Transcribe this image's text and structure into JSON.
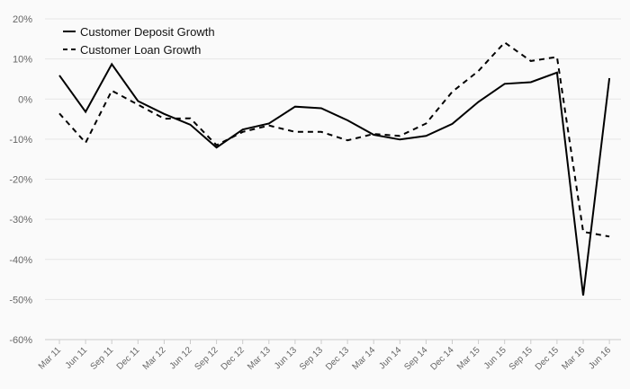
{
  "chart_data": {
    "type": "line",
    "categories": [
      "Mar 11",
      "Jun 11",
      "Sep 11",
      "Dec 11",
      "Mar 12",
      "Jun 12",
      "Sep 12",
      "Dec 12",
      "Mar 13",
      "Jun 13",
      "Sep 13",
      "Dec 13",
      "Mar 14",
      "Jun 14",
      "Sep 14",
      "Dec 14",
      "Mar 15",
      "Jun 15",
      "Sep 15",
      "Dec 15",
      "Mar 16",
      "Jun 16"
    ],
    "series": [
      {
        "name": "Customer Deposit Growth",
        "style": "solid",
        "color": "#000000",
        "values": [
          5.9,
          -3.2,
          8.7,
          -0.5,
          -3.7,
          -6.4,
          -12.1,
          -7.6,
          -6.1,
          -1.9,
          -2.3,
          -5.3,
          -8.9,
          -10.1,
          -9.2,
          -6.2,
          -0.7,
          3.8,
          4.2,
          6.6,
          -49.0,
          5.2
        ]
      },
      {
        "name": "Customer Loan Growth",
        "style": "dashed",
        "color": "#000000",
        "values": [
          -3.6,
          -10.9,
          2.1,
          -1.4,
          -4.9,
          -4.8,
          -11.5,
          -8.2,
          -6.6,
          -8.2,
          -8.2,
          -10.3,
          -8.7,
          -9.2,
          -6.1,
          1.8,
          7.0,
          14.1,
          9.5,
          10.5,
          -33.1,
          -34.3
        ]
      }
    ],
    "y_ticks": [
      "20%",
      "10%",
      "0%",
      "-10%",
      "-20%",
      "-30%",
      "-40%",
      "-50%",
      "-60%"
    ],
    "y_tick_values": [
      20,
      10,
      0,
      -10,
      -20,
      -30,
      -40,
      -50,
      -60
    ],
    "ylim": [
      -60,
      20
    ],
    "title": "",
    "xlabel": "",
    "ylabel": "",
    "grid": "horizontal",
    "legend_position": "top-left",
    "colors": {
      "background": "#fafafa",
      "grid": "#e6e6e6",
      "axis": "#cccccc",
      "text": "#666666",
      "line": "#000000"
    }
  }
}
